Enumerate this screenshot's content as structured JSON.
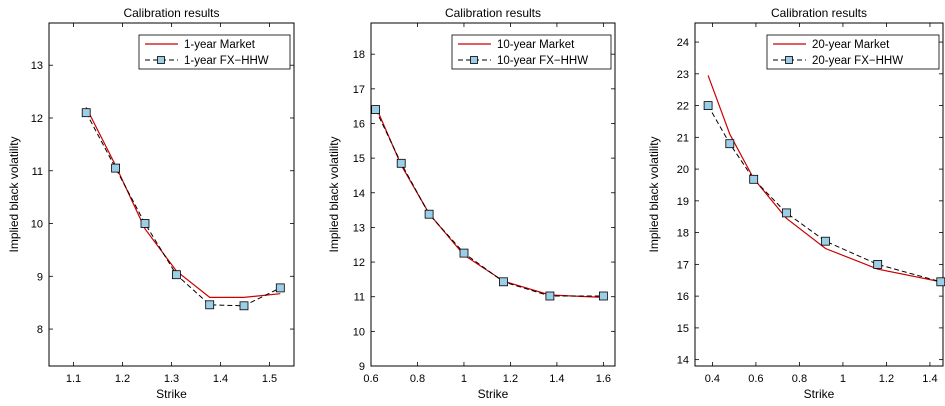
{
  "chart_data": [
    {
      "type": "line",
      "title": "Calibration results",
      "xlabel": "Strike",
      "ylabel": "Implied black volatility",
      "xlim": [
        1.05,
        1.55
      ],
      "ylim": [
        7.3,
        13.8
      ],
      "xticks": [
        1.1,
        1.2,
        1.3,
        1.4,
        1.5
      ],
      "xtick_labels": [
        "1.1",
        "1.2",
        "1.3",
        "1.4",
        "1.5"
      ],
      "yticks": [
        8,
        9,
        10,
        11,
        12,
        13
      ],
      "ytick_labels": [
        "8",
        "9",
        "10",
        "11",
        "12",
        "13"
      ],
      "grid": false,
      "legend_position": "top-right",
      "series": [
        {
          "name": "1-year Market",
          "color": "#cc0000",
          "style": "solid",
          "marker": "none",
          "x": [
            1.126,
            1.186,
            1.246,
            1.31,
            1.378,
            1.448,
            1.522
          ],
          "y": [
            12.2,
            11.1,
            9.9,
            9.1,
            8.6,
            8.6,
            8.67
          ]
        },
        {
          "name": "1-year FX−HHW",
          "color": "#000000",
          "style": "dashed",
          "marker": "square",
          "marker_color": "#9ccfe7",
          "x": [
            1.126,
            1.186,
            1.246,
            1.31,
            1.378,
            1.448,
            1.522
          ],
          "y": [
            12.1,
            11.05,
            10.0,
            9.03,
            8.46,
            8.44,
            8.78
          ]
        }
      ]
    },
    {
      "type": "line",
      "title": "Calibration results",
      "xlabel": "Strike",
      "ylabel": "Implied black volatility",
      "xlim": [
        0.6,
        1.65
      ],
      "ylim": [
        9,
        18.9
      ],
      "xticks": [
        0.6,
        0.8,
        1.0,
        1.2,
        1.4,
        1.6
      ],
      "xtick_labels": [
        "0.6",
        "0.8",
        "1",
        "1.2",
        "1.4",
        "1.6"
      ],
      "yticks": [
        9,
        10,
        11,
        12,
        13,
        14,
        15,
        16,
        17,
        18
      ],
      "ytick_labels": [
        "9",
        "10",
        "11",
        "12",
        "13",
        "14",
        "15",
        "16",
        "17",
        "18"
      ],
      "grid": false,
      "legend_position": "top-right",
      "series": [
        {
          "name": "10-year Market",
          "color": "#cc0000",
          "style": "solid",
          "marker": "none",
          "x": [
            0.62,
            0.73,
            0.85,
            1.0,
            1.17,
            1.37,
            1.6
          ],
          "y": [
            16.5,
            14.8,
            13.4,
            12.2,
            11.45,
            11.05,
            10.98
          ]
        },
        {
          "name": "10-year FX−HHW",
          "color": "#000000",
          "style": "dashed",
          "marker": "square",
          "marker_color": "#9ccfe7",
          "x": [
            0.62,
            0.73,
            0.85,
            1.0,
            1.17,
            1.37,
            1.6
          ],
          "y": [
            16.4,
            14.85,
            13.38,
            12.26,
            11.43,
            11.02,
            11.02
          ]
        }
      ]
    },
    {
      "type": "line",
      "title": "Calibration results",
      "xlabel": "Strike",
      "ylabel": "Implied black volatility",
      "xlim": [
        0.32,
        1.46
      ],
      "ylim": [
        13.8,
        24.6
      ],
      "xticks": [
        0.4,
        0.6,
        0.8,
        1.0,
        1.2,
        1.4
      ],
      "xtick_labels": [
        "0.4",
        "0.6",
        "0.8",
        "1",
        "1.2",
        "1.4"
      ],
      "yticks": [
        14,
        15,
        16,
        17,
        18,
        19,
        20,
        21,
        22,
        23,
        24
      ],
      "ytick_labels": [
        "14",
        "15",
        "16",
        "17",
        "18",
        "19",
        "20",
        "21",
        "22",
        "23",
        "24"
      ],
      "grid": false,
      "legend_position": "top-right",
      "series": [
        {
          "name": "20-year Market",
          "color": "#cc0000",
          "style": "solid",
          "marker": "none",
          "x": [
            0.38,
            0.48,
            0.59,
            0.74,
            0.92,
            1.16,
            1.45
          ],
          "y": [
            22.95,
            21.1,
            19.7,
            18.45,
            17.5,
            16.85,
            16.45
          ]
        },
        {
          "name": "20-year FX−HHW",
          "color": "#000000",
          "style": "dashed",
          "marker": "square",
          "marker_color": "#9ccfe7",
          "x": [
            0.38,
            0.48,
            0.59,
            0.74,
            0.92,
            1.16,
            1.45
          ],
          "y": [
            22.0,
            20.8,
            19.68,
            18.62,
            17.73,
            17.0,
            16.45
          ]
        }
      ]
    }
  ]
}
